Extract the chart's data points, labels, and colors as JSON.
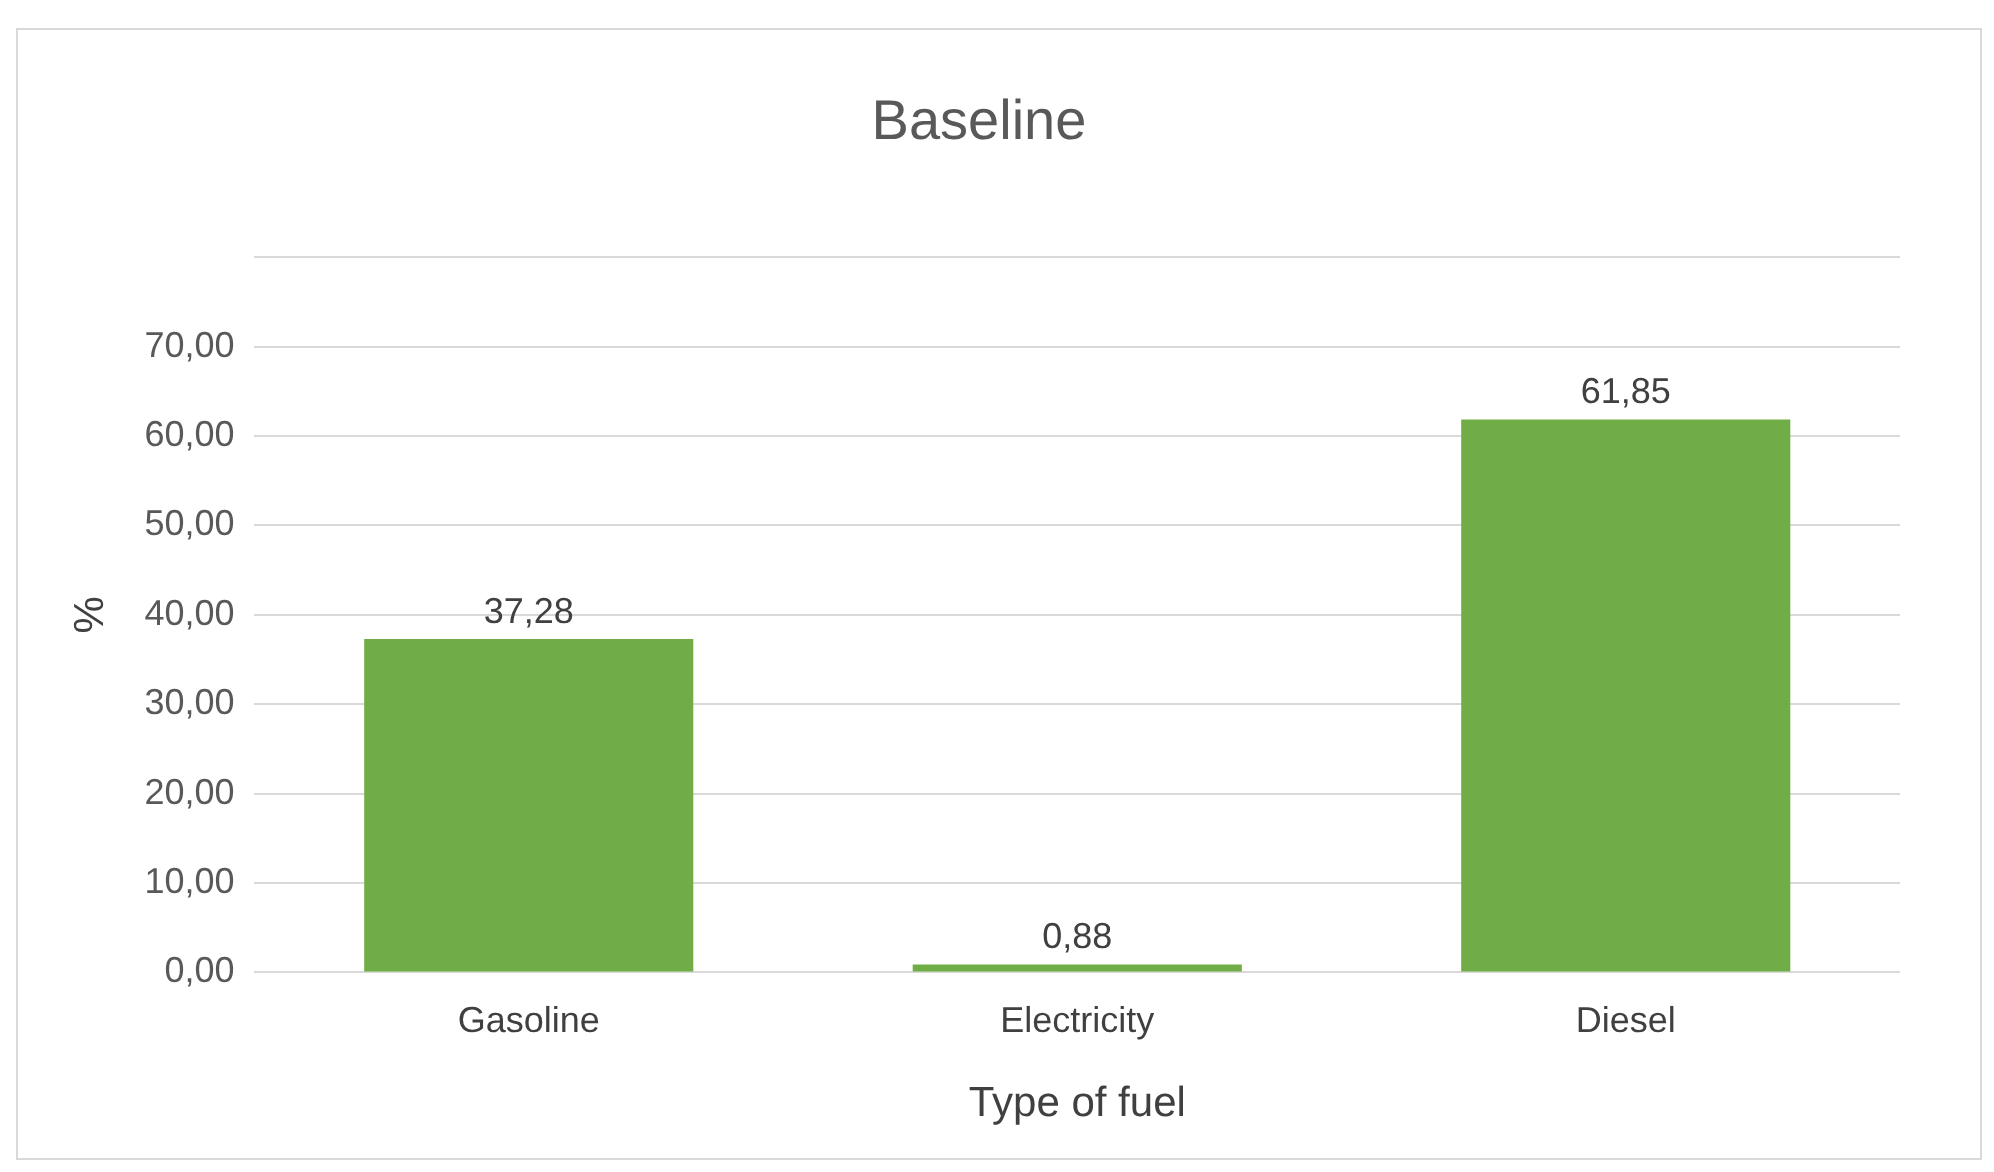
{
  "chart_data": {
    "type": "bar",
    "title": "Baseline",
    "xlabel": "Type of fuel",
    "ylabel": "%",
    "categories": [
      "Gasoline",
      "Electricity",
      "Diesel"
    ],
    "values": [
      37.28,
      0.88,
      61.85
    ],
    "value_labels": [
      "37,28",
      "0,88",
      "61,85"
    ],
    "color": "#70ad47",
    "ylim": [
      0,
      80
    ],
    "yticks": [
      {
        "value": 0,
        "label": "0,00"
      },
      {
        "value": 10,
        "label": "10,00"
      },
      {
        "value": 20,
        "label": "20,00"
      },
      {
        "value": 30,
        "label": "30,00"
      },
      {
        "value": 40,
        "label": "40,00"
      },
      {
        "value": 50,
        "label": "50,00"
      },
      {
        "value": 60,
        "label": "60,00"
      },
      {
        "value": 70,
        "label": "70,00"
      },
      {
        "value": 80,
        "label": null
      }
    ],
    "grid": "y",
    "legend": false
  }
}
